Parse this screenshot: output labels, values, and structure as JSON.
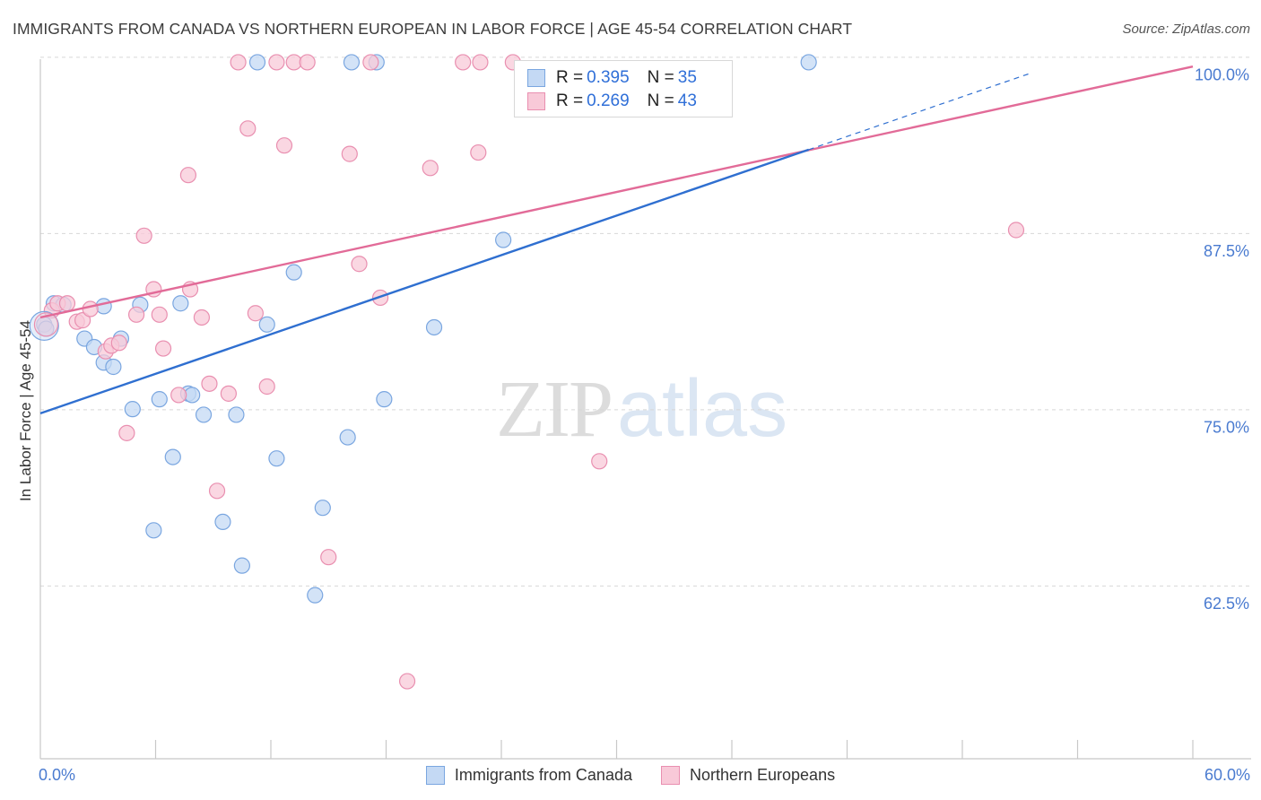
{
  "title": "IMMIGRANTS FROM CANADA VS NORTHERN EUROPEAN IN LABOR FORCE | AGE 45-54 CORRELATION CHART",
  "source": "Source: ZipAtlas.com",
  "watermark": {
    "zip": "ZIP",
    "atlas": "atlas"
  },
  "legend_top": {
    "r_label": "R =",
    "n_label": "N =",
    "rows": [
      {
        "r": "0.395",
        "n": "35"
      },
      {
        "r": "0.269",
        "n": "43"
      }
    ]
  },
  "legend_bottom": [
    "Immigrants from Canada",
    "Northern Europeans"
  ],
  "colors": {
    "blue_fill": "#c4d9f4",
    "blue_stroke": "#7aa6e0",
    "blue_line": "#2f6fd0",
    "pink_fill": "#f8c9d8",
    "pink_stroke": "#e98fb0",
    "pink_line": "#e26b98",
    "grid": "#d7d7d7",
    "tick_text": "#4a7bd0"
  },
  "chart_data": {
    "type": "scatter",
    "title": "IMMIGRANTS FROM CANADA VS NORTHERN EUROPEAN IN LABOR FORCE | AGE 45-54 CORRELATION CHART",
    "xlabel": "",
    "ylabel": "In Labor Force | Age 45-54",
    "xlim": [
      0,
      60
    ],
    "ylim": [
      51.5,
      101.5
    ],
    "x_tick_labels": [
      {
        "value": 0,
        "label": "0.0%"
      },
      {
        "value": 60,
        "label": "60.0%"
      }
    ],
    "y_tick_labels": [
      {
        "value": 62.5,
        "label": "62.5%"
      },
      {
        "value": 75.0,
        "label": "75.0%"
      },
      {
        "value": 87.5,
        "label": "87.5%"
      },
      {
        "value": 100.0,
        "label": "100.0%"
      }
    ],
    "y_gridlines": [
      63.75,
      76.25,
      88.75,
      101.25
    ],
    "x_minor_ticks": [
      6,
      12,
      18,
      24,
      30,
      36,
      42,
      48,
      54,
      60
    ],
    "grid": true,
    "series": [
      {
        "name": "Immigrants from Canada",
        "r": 0.395,
        "n": 35,
        "points": [
          [
            0.2,
            82.3
          ],
          [
            0.3,
            82.0
          ],
          [
            0.7,
            83.8
          ],
          [
            1.2,
            83.7
          ],
          [
            2.3,
            81.3
          ],
          [
            2.8,
            80.7
          ],
          [
            3.3,
            79.6
          ],
          [
            3.3,
            83.6
          ],
          [
            3.8,
            79.3
          ],
          [
            4.2,
            81.3
          ],
          [
            4.8,
            76.3
          ],
          [
            5.2,
            83.7
          ],
          [
            5.9,
            67.7
          ],
          [
            6.2,
            77.0
          ],
          [
            6.9,
            72.9
          ],
          [
            7.3,
            83.8
          ],
          [
            7.7,
            77.4
          ],
          [
            7.9,
            77.3
          ],
          [
            8.5,
            75.9
          ],
          [
            9.5,
            68.3
          ],
          [
            10.2,
            75.9
          ],
          [
            10.5,
            65.2
          ],
          [
            11.3,
            100.9
          ],
          [
            11.8,
            82.3
          ],
          [
            12.3,
            72.8
          ],
          [
            13.2,
            86.0
          ],
          [
            14.3,
            63.1
          ],
          [
            14.7,
            69.3
          ],
          [
            16.0,
            74.3
          ],
          [
            16.2,
            100.9
          ],
          [
            17.5,
            100.9
          ],
          [
            17.9,
            77.0
          ],
          [
            20.5,
            82.1
          ],
          [
            24.1,
            88.3
          ],
          [
            40.0,
            100.9
          ]
        ],
        "trend": {
          "x0": 0,
          "y0": 76.0,
          "x1": 40.0,
          "y1": 94.7,
          "dashed_x1": 51.5,
          "dashed_y1": 100.1
        }
      },
      {
        "name": "Northern Europeans",
        "r": 0.269,
        "n": 43,
        "points": [
          [
            0.6,
            83.3
          ],
          [
            0.9,
            83.8
          ],
          [
            1.4,
            83.8
          ],
          [
            1.9,
            82.5
          ],
          [
            2.2,
            82.6
          ],
          [
            2.6,
            83.4
          ],
          [
            3.4,
            80.4
          ],
          [
            3.7,
            80.8
          ],
          [
            4.1,
            81.0
          ],
          [
            4.5,
            74.6
          ],
          [
            5.0,
            83.0
          ],
          [
            5.4,
            88.6
          ],
          [
            5.9,
            84.8
          ],
          [
            6.2,
            83.0
          ],
          [
            6.4,
            80.6
          ],
          [
            7.2,
            77.3
          ],
          [
            7.7,
            92.9
          ],
          [
            7.8,
            84.8
          ],
          [
            8.4,
            82.8
          ],
          [
            8.8,
            78.1
          ],
          [
            9.2,
            70.5
          ],
          [
            9.8,
            77.4
          ],
          [
            10.3,
            100.9
          ],
          [
            10.8,
            96.2
          ],
          [
            11.2,
            83.1
          ],
          [
            11.8,
            77.9
          ],
          [
            12.3,
            100.9
          ],
          [
            12.7,
            95.0
          ],
          [
            13.2,
            100.9
          ],
          [
            13.9,
            100.9
          ],
          [
            15.0,
            65.8
          ],
          [
            16.1,
            94.4
          ],
          [
            16.6,
            86.6
          ],
          [
            17.2,
            100.9
          ],
          [
            17.7,
            84.2
          ],
          [
            19.1,
            57.0
          ],
          [
            20.3,
            93.4
          ],
          [
            22.0,
            100.9
          ],
          [
            22.8,
            94.5
          ],
          [
            22.9,
            100.9
          ],
          [
            24.6,
            100.9
          ],
          [
            29.1,
            72.6
          ],
          [
            50.8,
            89.0
          ]
        ],
        "trend": {
          "x0": 0,
          "y0": 82.8,
          "x1": 60.0,
          "y1": 100.6
        }
      }
    ]
  }
}
